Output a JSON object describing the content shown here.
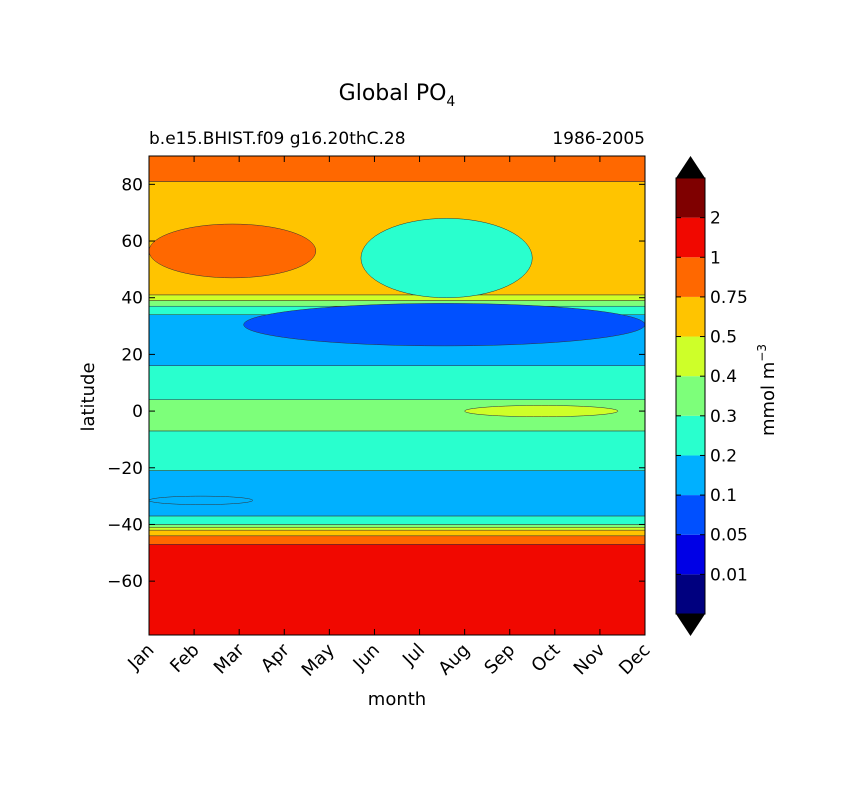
{
  "chart_data": {
    "type": "heatmap",
    "title": {
      "main": "Global PO",
      "subscript": "4"
    },
    "subtitle_left": "b.e15.BHIST.f09 g16.20thC.28",
    "subtitle_right": "1986-2005",
    "xlabel": "month",
    "ylabel": "latitude",
    "x_categories": [
      "Jan",
      "Feb",
      "Mar",
      "Apr",
      "May",
      "Jun",
      "Jul",
      "Aug",
      "Sep",
      "Oct",
      "Nov",
      "Dec"
    ],
    "y_ticks": [
      "80",
      "60",
      "40",
      "20",
      "0",
      "−20",
      "−40",
      "−60"
    ],
    "y_tick_values": [
      80,
      60,
      40,
      20,
      0,
      -20,
      -40,
      -60
    ],
    "ylim": [
      -79,
      90
    ],
    "colorbar": {
      "label_main": "mmol m",
      "label_exponent": "−3",
      "levels": [
        "0.01",
        "0.05",
        "0.1",
        "0.2",
        "0.3",
        "0.4",
        "0.5",
        "0.75",
        "1",
        "2"
      ],
      "colors": [
        "#00007f",
        "#0000e6",
        "#0050ff",
        "#00b0ff",
        "#29ffce",
        "#7dff7a",
        "#ceff29",
        "#ffc400",
        "#ff6800",
        "#f10800",
        "#7f0000"
      ],
      "extend": "both",
      "extend_color": "#000000"
    },
    "bands": [
      {
        "level_index": 9,
        "lat_from": -79,
        "lat_to": -47
      },
      {
        "level_index": 8,
        "lat_from": -47,
        "lat_to": -44
      },
      {
        "level_index": 7,
        "lat_from": -44,
        "lat_to": -42
      },
      {
        "level_index": 6,
        "lat_from": -42,
        "lat_to": -41
      },
      {
        "level_index": 5,
        "lat_from": -41,
        "lat_to": -40
      },
      {
        "level_index": 4,
        "lat_from": -40,
        "lat_to": -37
      },
      {
        "level_index": 3,
        "lat_from": -37,
        "lat_to": -21
      },
      {
        "level_index": 4,
        "lat_from": -21,
        "lat_to": -7
      },
      {
        "level_index": 5,
        "lat_from": -7,
        "lat_to": 4
      },
      {
        "level_index": 4,
        "lat_from": 4,
        "lat_to": 16
      },
      {
        "level_index": 3,
        "lat_from": 16,
        "lat_to": 34
      },
      {
        "level_index": 4,
        "lat_from": 34,
        "lat_to": 37
      },
      {
        "level_index": 5,
        "lat_from": 37,
        "lat_to": 39
      },
      {
        "level_index": 6,
        "lat_from": 39,
        "lat_to": 41
      },
      {
        "level_index": 7,
        "lat_from": 41,
        "lat_to": 81
      },
      {
        "level_index": 8,
        "lat_from": 81,
        "lat_to": 90
      }
    ],
    "features": [
      {
        "name": "subtropical-minimum",
        "level_index": 2,
        "month_from": 2.1,
        "month_to": 11.0,
        "lat_from": 23,
        "lat_to": 38
      },
      {
        "name": "equatorial-maximum",
        "level_index": 6,
        "month_from": 7.0,
        "month_to": 10.4,
        "lat_from": -2,
        "lat_to": 2
      },
      {
        "name": "southern-minimum",
        "level_index": 3,
        "month_from": 0.0,
        "month_to": 2.3,
        "lat_from": -33,
        "lat_to": -30
      },
      {
        "name": "northern-high",
        "level_index": 8,
        "month_from": 0.0,
        "month_to": 3.7,
        "lat_from": 47,
        "lat_to": 66
      },
      {
        "name": "summer-low",
        "level_index": 4,
        "month_from": 4.7,
        "month_to": 8.5,
        "lat_from": 40,
        "lat_to": 68
      }
    ]
  }
}
